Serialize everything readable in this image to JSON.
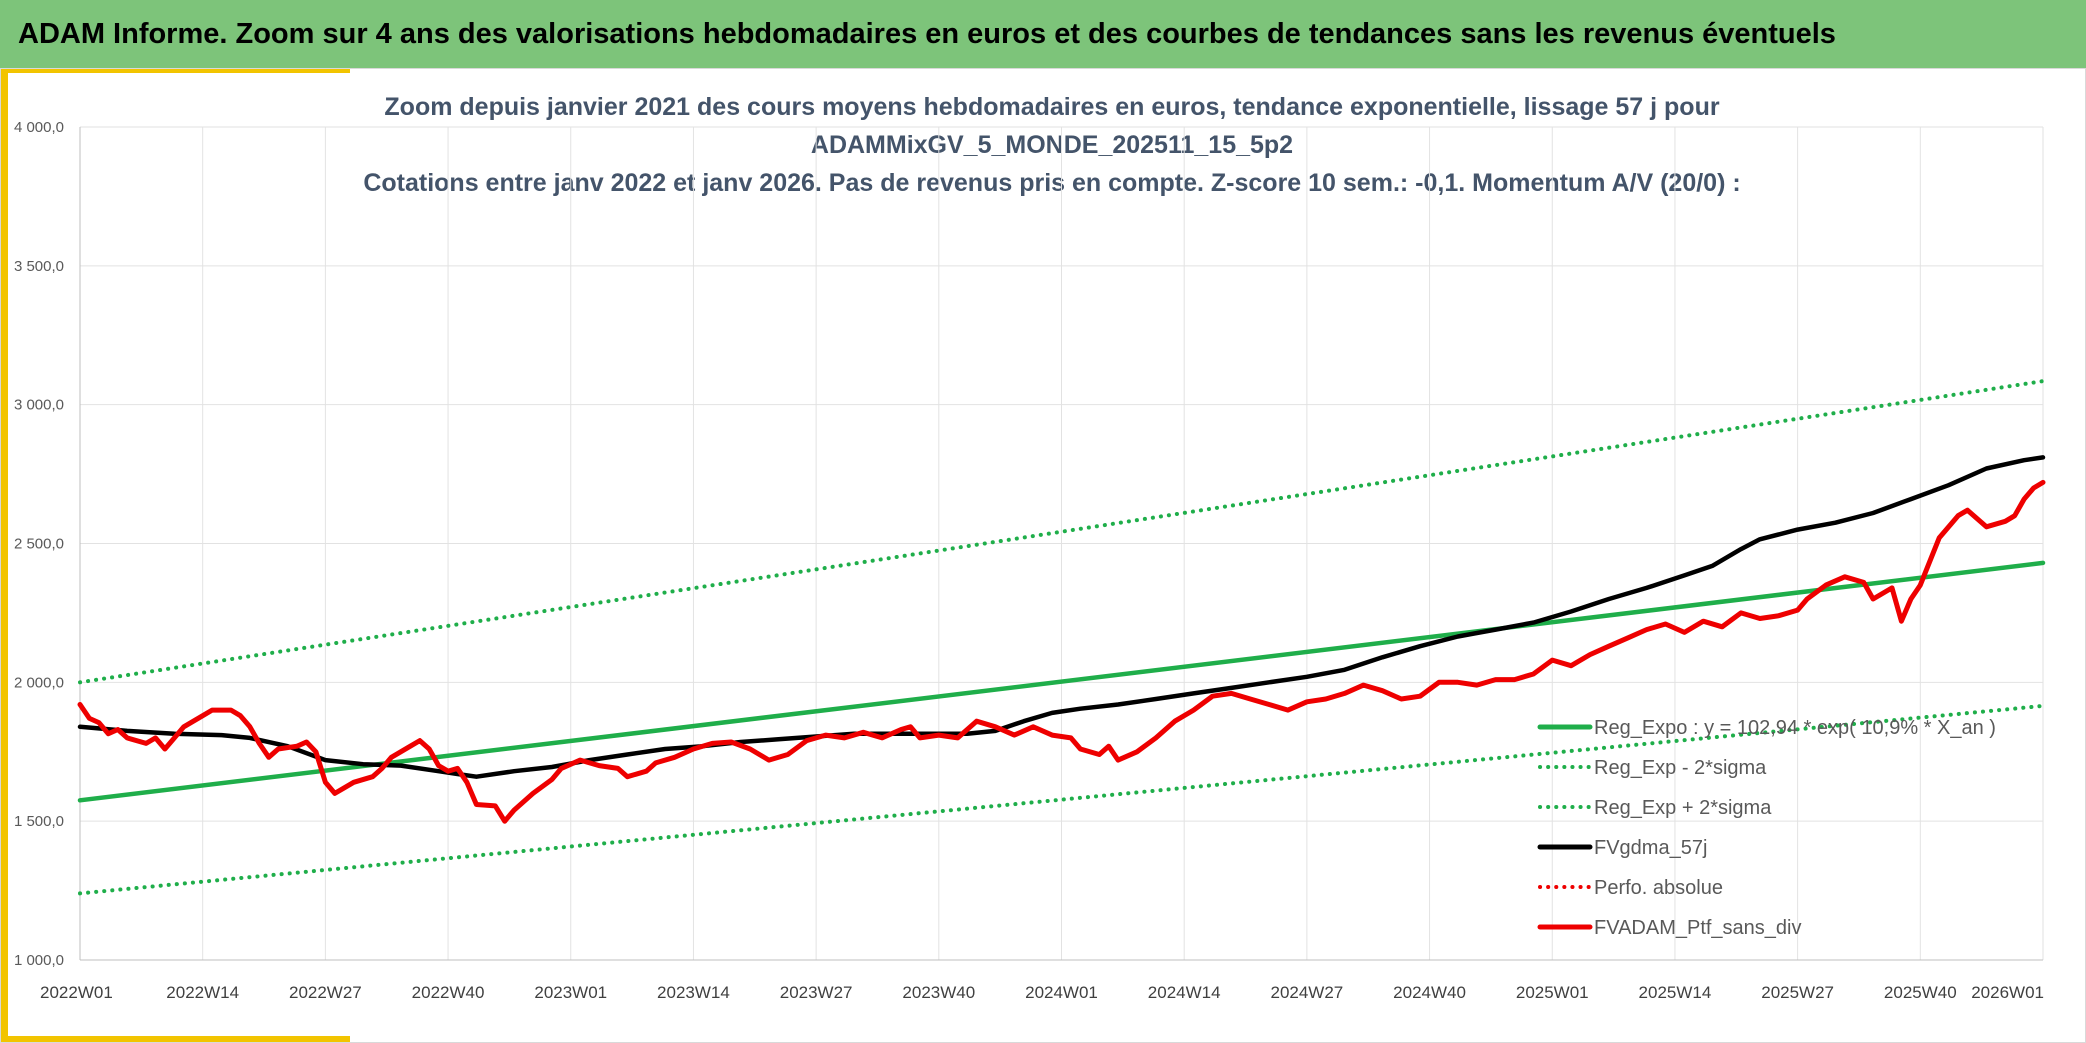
{
  "header": {
    "title": "ADAM Informe. Zoom sur 4 ans des valorisations hebdomadaires en euros et des courbes de tendances sans les revenus éventuels"
  },
  "colors": {
    "header_bg": "#7dc47a",
    "accent": "#f2c400",
    "green": "#1fae4a",
    "black": "#000000",
    "red": "#ee0000",
    "grid": "#e2e2e2",
    "title": "#44546a"
  },
  "chart_data": {
    "type": "line",
    "title_lines": [
      "Zoom depuis janvier 2021 des cours moyens hebdomadaires en euros, tendance exponentielle, lissage 57 j pour",
      "ADAMMixGV_5_MONDE_202511_15_5p2",
      "Cotations entre janv 2022 et janv 2026. Pas de revenus pris en compte. Z-score 10 sem.: -0,1. Momentum A/V (20/0) :"
    ],
    "x_range": [
      0,
      208
    ],
    "ylim": [
      1000,
      4000
    ],
    "yticks": [
      1000,
      1500,
      2000,
      2500,
      3000,
      3500,
      4000
    ],
    "ytick_labels": [
      "1 000,0",
      "1 500,0",
      "2 000,0",
      "2 500,0",
      "3 000,0",
      "3 500,0",
      "4 000,0"
    ],
    "xticks": [
      0,
      13,
      26,
      39,
      52,
      65,
      78,
      91,
      104,
      117,
      130,
      143,
      156,
      169,
      182,
      195,
      208
    ],
    "xtick_labels": [
      "2022W01",
      "2022W14",
      "2022W27",
      "2022W40",
      "2023W01",
      "2023W14",
      "2023W27",
      "2023W40",
      "2024W01",
      "2024W14",
      "2024W27",
      "2024W40",
      "2025W01",
      "2025W14",
      "2025W27",
      "2025W40",
      "2026W01"
    ],
    "legend_position": "bottom-right",
    "series": [
      {
        "name": "Reg_Expo : y = 102,94 * exp( 10,9% * X_an )",
        "style": "solid",
        "color": "#1fae4a",
        "points": [
          [
            0,
            1575
          ],
          [
            208,
            2430
          ]
        ]
      },
      {
        "name": "Reg_Exp - 2*sigma",
        "style": "dotted",
        "color": "#1fae4a",
        "points": [
          [
            0,
            1240
          ],
          [
            208,
            1915
          ]
        ]
      },
      {
        "name": "Reg_Exp + 2*sigma",
        "style": "dotted",
        "color": "#1fae4a",
        "points": [
          [
            0,
            2000
          ],
          [
            208,
            3085
          ]
        ]
      },
      {
        "name": "FVgdma_57j",
        "style": "solid",
        "color": "#000000",
        "points": [
          [
            0,
            1840
          ],
          [
            5,
            1825
          ],
          [
            10,
            1815
          ],
          [
            15,
            1810
          ],
          [
            18,
            1800
          ],
          [
            22,
            1770
          ],
          [
            26,
            1720
          ],
          [
            30,
            1705
          ],
          [
            34,
            1700
          ],
          [
            38,
            1680
          ],
          [
            40,
            1670
          ],
          [
            42,
            1660
          ],
          [
            46,
            1680
          ],
          [
            50,
            1695
          ],
          [
            54,
            1720
          ],
          [
            58,
            1740
          ],
          [
            62,
            1760
          ],
          [
            66,
            1770
          ],
          [
            70,
            1785
          ],
          [
            74,
            1795
          ],
          [
            78,
            1805
          ],
          [
            82,
            1815
          ],
          [
            86,
            1815
          ],
          [
            90,
            1815
          ],
          [
            94,
            1815
          ],
          [
            97,
            1825
          ],
          [
            100,
            1860
          ],
          [
            103,
            1890
          ],
          [
            106,
            1905
          ],
          [
            110,
            1920
          ],
          [
            114,
            1940
          ],
          [
            118,
            1960
          ],
          [
            122,
            1980
          ],
          [
            126,
            2000
          ],
          [
            130,
            2020
          ],
          [
            134,
            2045
          ],
          [
            138,
            2090
          ],
          [
            142,
            2130
          ],
          [
            146,
            2165
          ],
          [
            150,
            2190
          ],
          [
            154,
            2215
          ],
          [
            158,
            2255
          ],
          [
            162,
            2300
          ],
          [
            166,
            2340
          ],
          [
            170,
            2385
          ],
          [
            173,
            2420
          ],
          [
            176,
            2480
          ],
          [
            178,
            2515
          ],
          [
            182,
            2550
          ],
          [
            186,
            2575
          ],
          [
            190,
            2610
          ],
          [
            194,
            2660
          ],
          [
            198,
            2710
          ],
          [
            202,
            2770
          ],
          [
            206,
            2800
          ],
          [
            208,
            2810
          ]
        ]
      },
      {
        "name": "Perfo. absolue",
        "style": "dotted",
        "color": "#ee0000",
        "points": []
      },
      {
        "name": "FVADAM_Ptf_sans_div",
        "style": "solid",
        "color": "#ee0000",
        "points": [
          [
            0,
            1920
          ],
          [
            1,
            1870
          ],
          [
            2,
            1855
          ],
          [
            3,
            1815
          ],
          [
            4,
            1830
          ],
          [
            5,
            1800
          ],
          [
            7,
            1780
          ],
          [
            8,
            1800
          ],
          [
            9,
            1760
          ],
          [
            10,
            1800
          ],
          [
            11,
            1840
          ],
          [
            13,
            1880
          ],
          [
            14,
            1900
          ],
          [
            16,
            1900
          ],
          [
            17,
            1880
          ],
          [
            18,
            1840
          ],
          [
            19,
            1780
          ],
          [
            20,
            1730
          ],
          [
            21,
            1760
          ],
          [
            23,
            1770
          ],
          [
            24,
            1785
          ],
          [
            25,
            1750
          ],
          [
            26,
            1640
          ],
          [
            27,
            1600
          ],
          [
            28,
            1620
          ],
          [
            29,
            1640
          ],
          [
            31,
            1660
          ],
          [
            32,
            1690
          ],
          [
            33,
            1730
          ],
          [
            35,
            1770
          ],
          [
            36,
            1790
          ],
          [
            37,
            1760
          ],
          [
            38,
            1700
          ],
          [
            39,
            1680
          ],
          [
            40,
            1690
          ],
          [
            41,
            1640
          ],
          [
            42,
            1560
          ],
          [
            44,
            1555
          ],
          [
            45,
            1500
          ],
          [
            46,
            1540
          ],
          [
            48,
            1600
          ],
          [
            50,
            1650
          ],
          [
            51,
            1690
          ],
          [
            53,
            1720
          ],
          [
            55,
            1700
          ],
          [
            57,
            1690
          ],
          [
            58,
            1660
          ],
          [
            60,
            1680
          ],
          [
            61,
            1710
          ],
          [
            63,
            1730
          ],
          [
            65,
            1760
          ],
          [
            67,
            1780
          ],
          [
            69,
            1785
          ],
          [
            71,
            1760
          ],
          [
            73,
            1720
          ],
          [
            75,
            1740
          ],
          [
            77,
            1790
          ],
          [
            79,
            1810
          ],
          [
            81,
            1800
          ],
          [
            83,
            1820
          ],
          [
            85,
            1800
          ],
          [
            87,
            1830
          ],
          [
            88,
            1840
          ],
          [
            89,
            1800
          ],
          [
            91,
            1810
          ],
          [
            93,
            1800
          ],
          [
            95,
            1860
          ],
          [
            97,
            1840
          ],
          [
            99,
            1810
          ],
          [
            101,
            1840
          ],
          [
            103,
            1810
          ],
          [
            105,
            1800
          ],
          [
            106,
            1760
          ],
          [
            108,
            1740
          ],
          [
            109,
            1770
          ],
          [
            110,
            1720
          ],
          [
            112,
            1750
          ],
          [
            114,
            1800
          ],
          [
            116,
            1860
          ],
          [
            118,
            1900
          ],
          [
            120,
            1950
          ],
          [
            122,
            1960
          ],
          [
            124,
            1940
          ],
          [
            126,
            1920
          ],
          [
            128,
            1900
          ],
          [
            130,
            1930
          ],
          [
            132,
            1940
          ],
          [
            134,
            1960
          ],
          [
            136,
            1990
          ],
          [
            138,
            1970
          ],
          [
            140,
            1940
          ],
          [
            142,
            1950
          ],
          [
            144,
            2000
          ],
          [
            146,
            2000
          ],
          [
            148,
            1990
          ],
          [
            150,
            2010
          ],
          [
            152,
            2010
          ],
          [
            154,
            2030
          ],
          [
            156,
            2080
          ],
          [
            158,
            2060
          ],
          [
            160,
            2100
          ],
          [
            162,
            2130
          ],
          [
            164,
            2160
          ],
          [
            166,
            2190
          ],
          [
            168,
            2210
          ],
          [
            170,
            2180
          ],
          [
            172,
            2220
          ],
          [
            174,
            2200
          ],
          [
            176,
            2250
          ],
          [
            178,
            2230
          ],
          [
            180,
            2240
          ],
          [
            182,
            2260
          ],
          [
            183,
            2300
          ],
          [
            185,
            2350
          ],
          [
            187,
            2380
          ],
          [
            189,
            2360
          ],
          [
            190,
            2300
          ],
          [
            192,
            2340
          ],
          [
            193,
            2220
          ],
          [
            194,
            2300
          ],
          [
            195,
            2350
          ],
          [
            197,
            2520
          ],
          [
            199,
            2600
          ],
          [
            200,
            2620
          ],
          [
            202,
            2560
          ],
          [
            204,
            2580
          ],
          [
            205,
            2600
          ],
          [
            206,
            2660
          ],
          [
            207,
            2700
          ],
          [
            208,
            2720
          ]
        ]
      }
    ]
  }
}
